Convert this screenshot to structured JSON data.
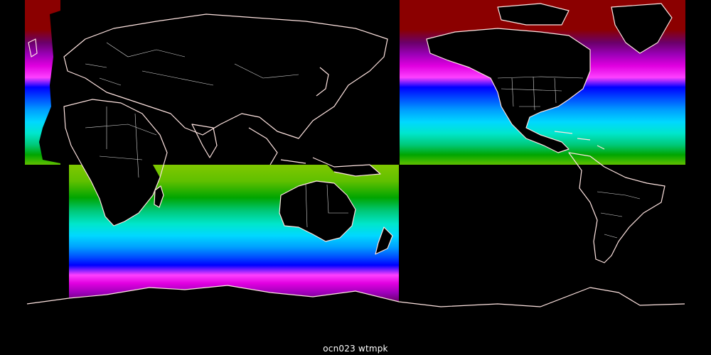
{
  "caption": "ocn023 wtmpk",
  "background_color": "#000000",
  "coastline_color": "#ffe4e1",
  "border_color": "#ffffff",
  "color_scale": [
    "#8b0000",
    "#6b006b",
    "#9b00b8",
    "#e000e0",
    "#ff40ff",
    "#0000ff",
    "#0050ff",
    "#00a0ff",
    "#00d8ff",
    "#00e6cc",
    "#00c878",
    "#00a500",
    "#60c000",
    "#80c800",
    "#a8d800"
  ]
}
